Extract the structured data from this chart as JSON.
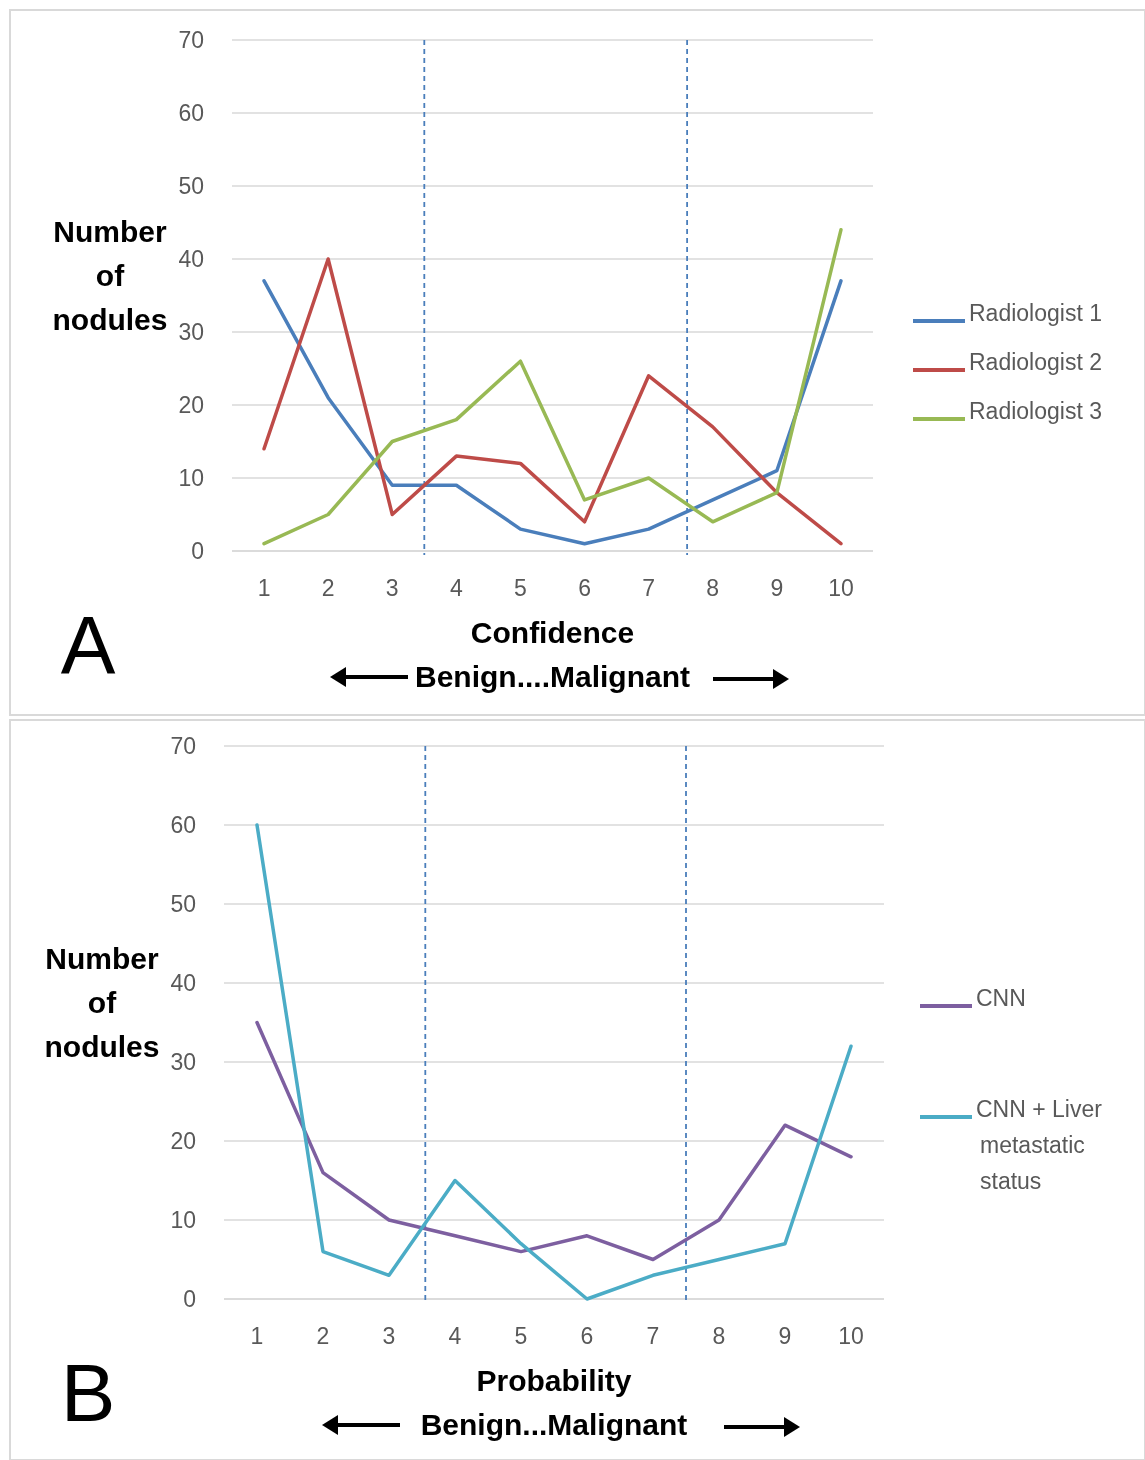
{
  "chart_data": [
    {
      "type": "line",
      "x": [
        1,
        2,
        3,
        4,
        5,
        6,
        7,
        8,
        9,
        10
      ],
      "xlim": [
        0.5,
        10.5
      ],
      "xticks": [
        1,
        2,
        3,
        4,
        5,
        6,
        7,
        8,
        9,
        10
      ],
      "ylim": [
        0,
        70
      ],
      "yticks": [
        0,
        10,
        20,
        30,
        40,
        50,
        60,
        70
      ],
      "grid": "y",
      "legend": "right",
      "marker": "none",
      "line_style": "solid",
      "xlabel": "Confidence",
      "ylabel": "Number of nodules",
      "series": [
        {
          "name": "Radiologist 1",
          "color": "#4a7ebb",
          "values": [
            37,
            21,
            9,
            9,
            3,
            1,
            3,
            7,
            11,
            37
          ]
        },
        {
          "name": "Radiologist 2",
          "color": "#be4b48",
          "values": [
            14,
            40,
            5,
            13,
            12,
            4,
            24,
            17,
            8,
            1
          ]
        },
        {
          "name": "Radiologist 3",
          "color": "#98b954",
          "values": [
            1,
            5,
            15,
            18,
            26,
            7,
            10,
            4,
            8,
            44
          ]
        }
      ],
      "ref_lines": [
        {
          "axis": "x",
          "value": 3.5,
          "color": "#4a7ebb",
          "line_style": "dashed"
        },
        {
          "axis": "x",
          "value": 7.6,
          "color": "#4a7ebb",
          "line_style": "dashed"
        }
      ],
      "annotations": [
        "A",
        "Benign....Malignant"
      ]
    },
    {
      "type": "line",
      "x": [
        1,
        2,
        3,
        4,
        5,
        6,
        7,
        8,
        9,
        10
      ],
      "xlim": [
        0.5,
        10.5
      ],
      "xticks": [
        1,
        2,
        3,
        4,
        5,
        6,
        7,
        8,
        9,
        10
      ],
      "ylim": [
        0,
        70
      ],
      "yticks": [
        0,
        10,
        20,
        30,
        40,
        50,
        60,
        70
      ],
      "grid": "y",
      "legend": "right",
      "marker": "none",
      "line_style": "solid",
      "xlabel": "Probability",
      "ylabel": "Number of nodules",
      "series": [
        {
          "name": "CNN",
          "color": "#7d5fa0",
          "values": [
            35,
            16,
            10,
            8,
            6,
            8,
            5,
            10,
            22,
            18
          ]
        },
        {
          "name": "CNN + Liver metastatic status",
          "color": "#4bacc6",
          "values": [
            60,
            6,
            3,
            15,
            7,
            0,
            3,
            5,
            7,
            32
          ]
        }
      ],
      "ref_lines": [
        {
          "axis": "x",
          "value": 3.55,
          "color": "#4a7ebb",
          "line_style": "dashed"
        },
        {
          "axis": "x",
          "value": 7.5,
          "color": "#4a7ebb",
          "line_style": "dashed"
        }
      ],
      "annotations": [
        "B",
        "Benign...Malignant"
      ]
    }
  ]
}
